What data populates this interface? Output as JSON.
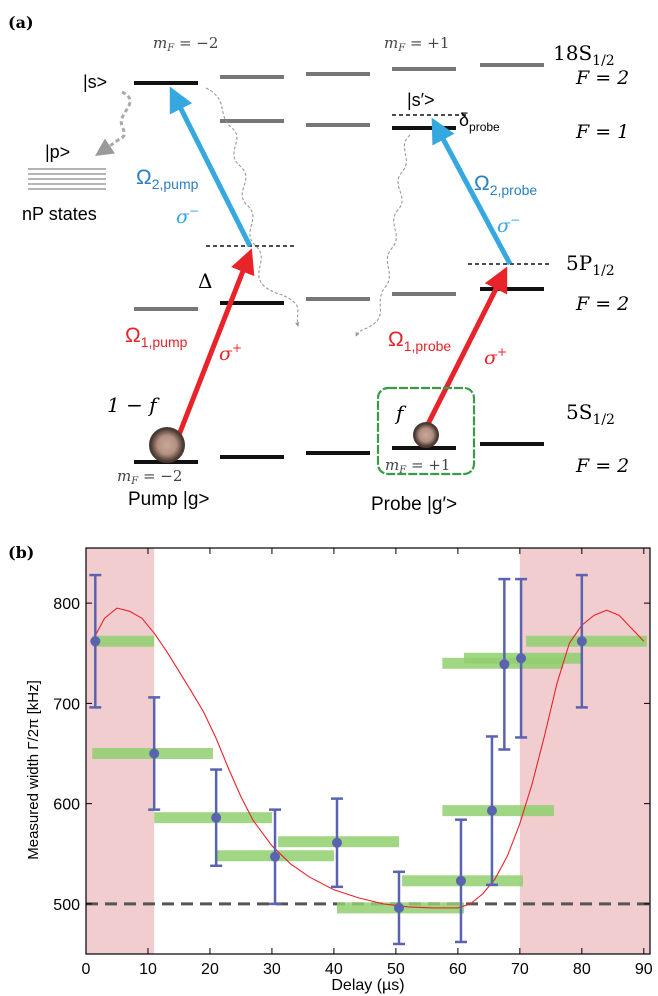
{
  "panel_a": {
    "label": "(a)",
    "right_labels": {
      "s_state": "18S",
      "s_sub": "1/2",
      "s_F2": "F = 2",
      "s_F1": "F = 1",
      "p_state": "5P",
      "p_sub": "1/2",
      "p_F": "F = 2",
      "g_state": "5S",
      "g_sub": "1/2",
      "g_F": "F = 2"
    },
    "mf_top_left": "m",
    "mf_top_left_sub": "F",
    "mf_top_left_val": " = −2",
    "mf_top_right": "m",
    "mf_top_right_sub": "F",
    "mf_top_right_val": " = +1",
    "mf_bot_left": "m",
    "mf_bot_left_sub": "F",
    "mf_bot_left_val": " = −2",
    "mf_bot_right": "m",
    "mf_bot_right_sub": "F",
    "mf_bot_right_val": " = +1",
    "ket_s": "|s>",
    "ket_s_prime": "|s′>",
    "ket_p": "|p>",
    "np_states": "nP states",
    "delta_probe": "δ",
    "delta_probe_sub": "probe",
    "big_delta": "Δ",
    "omega2_pump": "Ω",
    "omega2_pump_sub": "2,pump",
    "omega2_probe": "Ω",
    "omega2_probe_sub": "2,probe",
    "omega1_pump": "Ω",
    "omega1_pump_sub": "1,pump",
    "omega1_probe": "Ω",
    "omega1_probe_sub": "1,probe",
    "sigma_minus": "σ",
    "sigma_minus_sup": "−",
    "sigma_plus": "σ",
    "sigma_plus_sup": "+",
    "one_minus_f": "1 − f",
    "f": "f",
    "pump_label": "Pump |g>",
    "probe_label": "Probe |g′>",
    "colors": {
      "pump_red": "#e8232a",
      "blue": "#35a8e0",
      "green_box": "#3a9a4a",
      "level_dark": "#111111",
      "level_gray": "#777777"
    }
  },
  "panel_b": {
    "label": "(b)",
    "ylabel": "Measured width Γ/2π [kHz]",
    "xlabel": "Delay (µs)",
    "chart_data": {
      "type": "scatter",
      "xlim": [
        0,
        91
      ],
      "ylim": [
        450,
        855
      ],
      "x_ticks": [
        "0",
        "10",
        "20",
        "30",
        "40",
        "50",
        "60",
        "70",
        "80",
        "90"
      ],
      "y_ticks": [
        "500",
        "600",
        "700",
        "800"
      ],
      "points": [
        {
          "x": 1.5,
          "y": 762,
          "err": 66
        },
        {
          "x": 11,
          "y": 650,
          "err": 56
        },
        {
          "x": 21,
          "y": 586,
          "err": 48
        },
        {
          "x": 30.5,
          "y": 547,
          "err": 47
        },
        {
          "x": 40.5,
          "y": 561,
          "err": 44
        },
        {
          "x": 50.5,
          "y": 496,
          "err": 36
        },
        {
          "x": 60.5,
          "y": 523,
          "err": 61
        },
        {
          "x": 65.5,
          "y": 593,
          "err": 74
        },
        {
          "x": 67.5,
          "y": 739,
          "err": 85
        },
        {
          "x": 70.2,
          "y": 745,
          "err": 79
        },
        {
          "x": 80,
          "y": 762,
          "err": 66
        }
      ],
      "green_bars": [
        {
          "x0": 1,
          "x1": 11,
          "y": 762
        },
        {
          "x0": 1,
          "x1": 20.5,
          "y": 650
        },
        {
          "x0": 11,
          "x1": 30,
          "y": 586
        },
        {
          "x0": 21,
          "x1": 40,
          "y": 548
        },
        {
          "x0": 31,
          "x1": 50.5,
          "y": 562
        },
        {
          "x0": 40.5,
          "x1": 61,
          "y": 496
        },
        {
          "x0": 51,
          "x1": 70.5,
          "y": 523
        },
        {
          "x0": 57.5,
          "x1": 75.5,
          "y": 593
        },
        {
          "x0": 57.5,
          "x1": 77,
          "y": 740
        },
        {
          "x0": 61,
          "x1": 80,
          "y": 745
        },
        {
          "x0": 71,
          "x1": 90.5,
          "y": 762
        }
      ],
      "red_curve": [
        [
          1,
          762
        ],
        [
          3,
          785
        ],
        [
          5,
          795
        ],
        [
          7,
          792
        ],
        [
          9,
          785
        ],
        [
          11,
          770
        ],
        [
          13,
          752
        ],
        [
          15,
          732
        ],
        [
          17,
          712
        ],
        [
          19,
          691
        ],
        [
          21,
          665
        ],
        [
          23,
          635
        ],
        [
          25,
          607
        ],
        [
          27,
          583
        ],
        [
          30,
          558
        ],
        [
          33,
          540
        ],
        [
          36,
          527
        ],
        [
          40,
          514
        ],
        [
          44,
          506
        ],
        [
          48,
          500
        ],
        [
          52,
          497
        ],
        [
          56,
          496
        ],
        [
          60,
          496
        ],
        [
          62,
          500
        ],
        [
          64,
          510
        ],
        [
          66,
          525
        ],
        [
          68,
          548
        ],
        [
          70,
          580
        ],
        [
          72,
          620
        ],
        [
          74,
          668
        ],
        [
          76,
          720
        ],
        [
          78,
          760
        ],
        [
          80,
          778
        ],
        [
          82,
          788
        ],
        [
          84,
          793
        ],
        [
          86,
          788
        ],
        [
          88,
          775
        ],
        [
          90,
          762
        ]
      ],
      "dashed_line_y": 500,
      "shaded_regions": [
        [
          0,
          11
        ],
        [
          70,
          91
        ]
      ],
      "colors": {
        "point": "#5a63b0",
        "curve": "#e8232a",
        "green": "#8fcf6e",
        "shade": "#f2cdcf",
        "dash": "#555555"
      }
    }
  }
}
